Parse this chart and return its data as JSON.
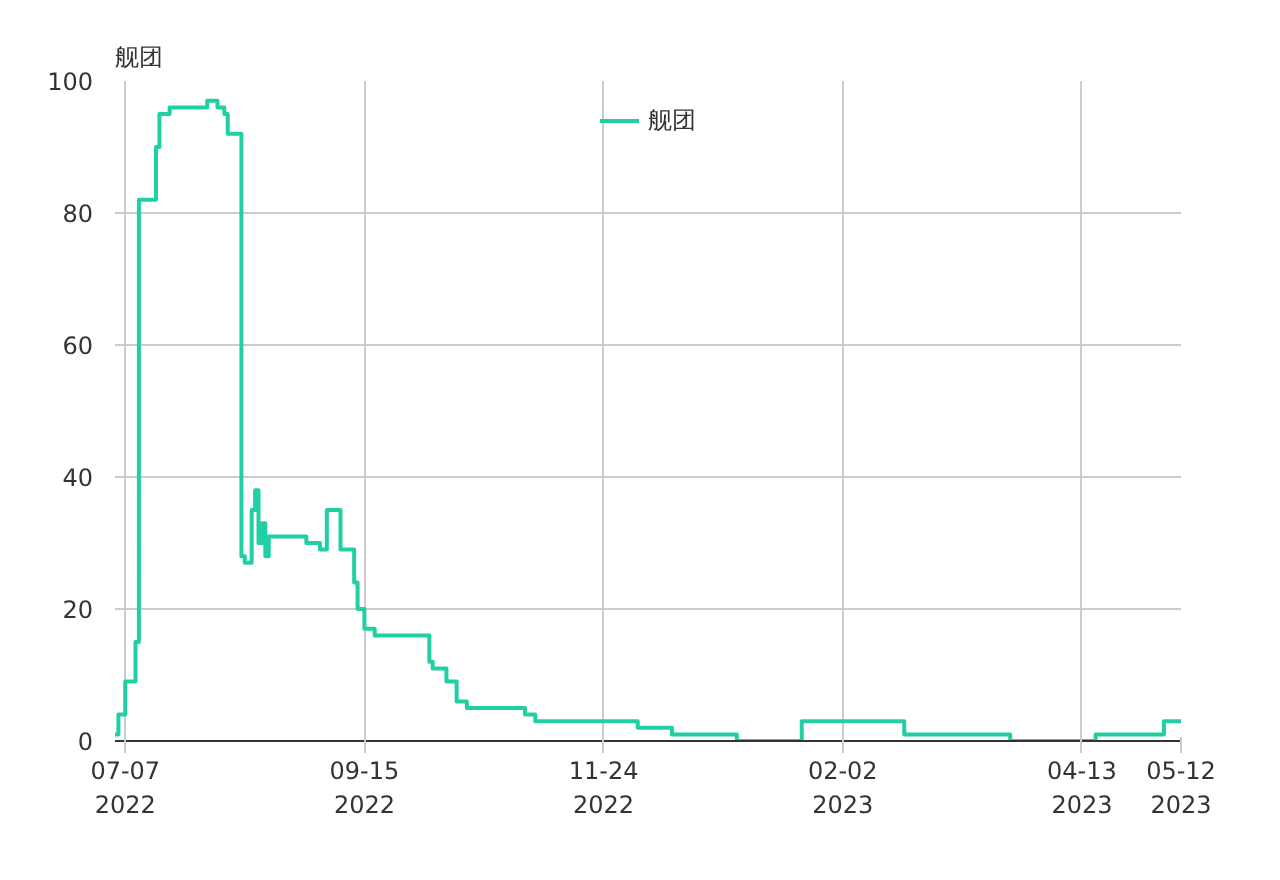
{
  "chart_data": {
    "type": "step",
    "ylabel": "舰团",
    "legend": "top",
    "grid": true,
    "x": [
      "2022-07-04",
      "2022-07-05",
      "2022-07-07",
      "2022-07-10",
      "2022-07-11",
      "2022-07-16",
      "2022-07-17",
      "2022-07-20",
      "2022-07-31",
      "2022-08-03",
      "2022-08-05",
      "2022-08-06",
      "2022-08-10",
      "2022-08-11",
      "2022-08-13",
      "2022-08-14",
      "2022-08-15",
      "2022-08-16",
      "2022-08-17",
      "2022-08-18",
      "2022-08-29",
      "2022-09-02",
      "2022-09-04",
      "2022-09-08",
      "2022-09-12",
      "2022-09-13",
      "2022-09-15",
      "2022-09-18",
      "2022-10-04",
      "2022-10-05",
      "2022-10-09",
      "2022-10-12",
      "2022-10-15",
      "2022-11-01",
      "2022-11-04",
      "2022-12-04",
      "2022-12-14",
      "2023-01-02",
      "2023-01-21",
      "2023-02-20",
      "2023-03-23",
      "2023-04-17",
      "2023-05-07",
      "2023-05-12"
    ],
    "series": [
      {
        "name": "舰团",
        "color": "#20d0a4",
        "values": [
          1,
          4,
          9,
          15,
          82,
          90,
          95,
          96,
          97,
          96,
          95,
          92,
          28,
          27,
          35,
          38,
          30,
          33,
          28,
          31,
          30,
          29,
          35,
          29,
          24,
          20,
          17,
          16,
          12,
          11,
          9,
          6,
          5,
          4,
          3,
          2,
          1,
          0,
          3,
          1,
          0,
          1,
          3,
          3
        ]
      }
    ],
    "xlim": [
      "2022-07-04",
      "2023-05-12"
    ],
    "xticks": [
      {
        "value": "2022-07-07",
        "label": "07-07\n2022"
      },
      {
        "value": "2022-09-15",
        "label": "09-15\n2022"
      },
      {
        "value": "2022-11-24",
        "label": "11-24\n2022"
      },
      {
        "value": "2023-02-02",
        "label": "02-02\n2023"
      },
      {
        "value": "2023-04-13",
        "label": "04-13\n2023"
      },
      {
        "value": "2023-05-12",
        "label": "05-12\n2023"
      }
    ],
    "ylim": [
      0,
      100
    ],
    "yticks": [
      0,
      20,
      40,
      60,
      80,
      100
    ]
  }
}
